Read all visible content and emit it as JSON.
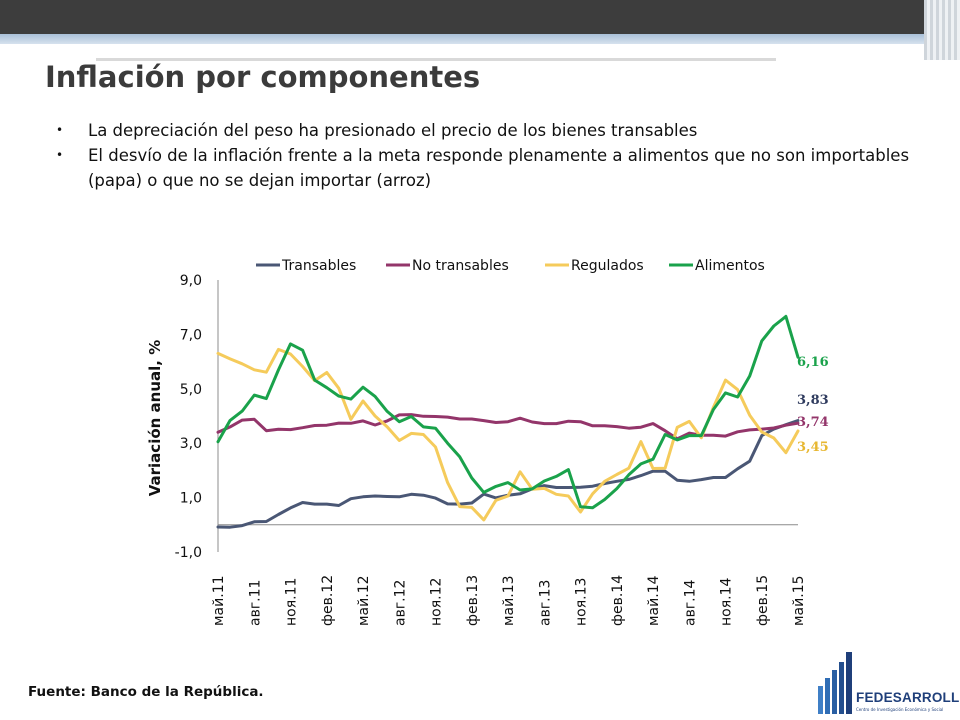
{
  "slide": {
    "title": "Inflación por componentes",
    "bullets": [
      "La depreciación del peso ha presionado el precio de los bienes transables",
      "El desvío de la inflación frente a la meta responde plenamente a alimentos que no son importables (papa) o que no se dejan importar (arroz)"
    ],
    "bullet_glyph": "•",
    "source": "Fuente: Banco de la República.",
    "logo": {
      "name": "FEDESARROLLO",
      "tagline": "Centro de Investigación Económica y Social",
      "color": "#1f3f7a"
    }
  },
  "chart_data": {
    "type": "line",
    "title": "",
    "xlabel": "",
    "ylabel": "Variación anual, %",
    "ylim": [
      -1,
      9
    ],
    "yticks": [
      "9,0",
      "7,0",
      "5,0",
      "3,0",
      "1,0",
      "-1,0"
    ],
    "ytick_values": [
      9,
      7,
      5,
      3,
      1,
      -1
    ],
    "x_tick_labels": [
      "май.11",
      "авг.11",
      "ноя.11",
      "фев.12",
      "май.12",
      "авг.12",
      "ноя.12",
      "фев.13",
      "май.13",
      "авг.13",
      "ноя.13",
      "фев.14",
      "май.14",
      "авг.14",
      "ноя.14",
      "фев.15",
      "май.15"
    ],
    "x_tick_every": 3,
    "legend_position": "top",
    "grid": false,
    "series": [
      {
        "name": "Transables",
        "color": "#4a5775",
        "end_label": "3,83",
        "values": [
          -0.08,
          -0.09,
          -0.03,
          0.11,
          0.12,
          0.38,
          0.62,
          0.82,
          0.76,
          0.76,
          0.71,
          0.96,
          1.03,
          1.06,
          1.04,
          1.03,
          1.12,
          1.09,
          0.98,
          0.77,
          0.76,
          0.8,
          1.13,
          0.99,
          1.09,
          1.14,
          1.32,
          1.44,
          1.37,
          1.37,
          1.38,
          1.42,
          1.52,
          1.6,
          1.67,
          1.81,
          1.97,
          1.97,
          1.64,
          1.6,
          1.66,
          1.74,
          1.74,
          2.06,
          2.34,
          3.28,
          3.52,
          3.68,
          3.83
        ]
      },
      {
        "name": "No transables",
        "color": "#93356a",
        "end_label": "3,74",
        "values": [
          3.4,
          3.6,
          3.85,
          3.88,
          3.46,
          3.51,
          3.5,
          3.57,
          3.65,
          3.66,
          3.74,
          3.73,
          3.82,
          3.67,
          3.82,
          4.04,
          4.05,
          3.99,
          3.98,
          3.96,
          3.89,
          3.89,
          3.83,
          3.76,
          3.79,
          3.92,
          3.78,
          3.72,
          3.72,
          3.81,
          3.79,
          3.64,
          3.64,
          3.61,
          3.55,
          3.59,
          3.72,
          3.46,
          3.16,
          3.37,
          3.29,
          3.29,
          3.26,
          3.42,
          3.49,
          3.52,
          3.56,
          3.66,
          3.74
        ]
      },
      {
        "name": "Regulados",
        "color": "#f5cb5b",
        "end_label": "3,45",
        "values": [
          6.3,
          6.1,
          5.92,
          5.7,
          5.61,
          6.45,
          6.28,
          5.82,
          5.3,
          5.6,
          5.02,
          3.88,
          4.55,
          4.0,
          3.6,
          3.1,
          3.36,
          3.32,
          2.86,
          1.55,
          0.67,
          0.64,
          0.18,
          0.9,
          1.06,
          1.95,
          1.31,
          1.34,
          1.12,
          1.06,
          0.47,
          1.14,
          1.6,
          1.85,
          2.08,
          3.06,
          2.07,
          2.08,
          3.58,
          3.8,
          3.2,
          4.32,
          5.32,
          4.97,
          4.03,
          3.41,
          3.19,
          2.65,
          3.45
        ]
      },
      {
        "name": "Alimentos",
        "color": "#1aa24b",
        "end_label": "6,16",
        "values": [
          3.05,
          3.84,
          4.18,
          4.77,
          4.64,
          5.69,
          6.65,
          6.42,
          5.32,
          5.04,
          4.73,
          4.62,
          5.06,
          4.72,
          4.17,
          3.79,
          3.98,
          3.6,
          3.55,
          3.0,
          2.5,
          1.72,
          1.19,
          1.41,
          1.55,
          1.28,
          1.32,
          1.61,
          1.78,
          2.03,
          0.66,
          0.63,
          0.93,
          1.33,
          1.84,
          2.24,
          2.41,
          3.32,
          3.12,
          3.28,
          3.28,
          4.24,
          4.85,
          4.7,
          5.47,
          6.76,
          7.31,
          7.66,
          6.16
        ]
      }
    ]
  }
}
